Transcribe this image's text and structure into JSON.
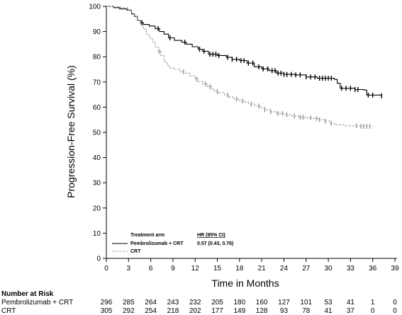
{
  "chart_data": {
    "type": "line",
    "title": "",
    "xlabel": "Time in Months",
    "ylabel": "Progression-Free Survival (%)",
    "xlim": [
      0,
      39
    ],
    "ylim": [
      0,
      100
    ],
    "x_ticks": [
      0,
      3,
      6,
      9,
      12,
      15,
      18,
      21,
      24,
      27,
      30,
      33,
      36,
      39
    ],
    "y_ticks": [
      0,
      10,
      20,
      30,
      40,
      50,
      60,
      70,
      80,
      90,
      100
    ],
    "grid": false,
    "legend": {
      "position": "bottom-left",
      "header_arm": "Treatment arm",
      "header_hr": "HR (95% CI)",
      "entries": [
        {
          "name": "Pembrolizumab + CRT",
          "hr": "0.57 (0.43, 0.76)",
          "color": "#000000",
          "dashed": false
        },
        {
          "name": "CRT",
          "hr": "",
          "color": "#9a9a9a",
          "dashed": true
        }
      ]
    },
    "series": [
      {
        "name": "Pembrolizumab + CRT",
        "color": "#000000",
        "dashed": false,
        "points": [
          [
            0,
            100
          ],
          [
            1,
            99.5
          ],
          [
            1.8,
            99
          ],
          [
            2.8,
            98.5
          ],
          [
            3.4,
            97
          ],
          [
            3.8,
            96
          ],
          [
            4.2,
            94.5
          ],
          [
            4.6,
            93.5
          ],
          [
            5,
            92.8
          ],
          [
            5.8,
            92.2
          ],
          [
            6.6,
            91.2
          ],
          [
            7.2,
            90
          ],
          [
            7.8,
            89
          ],
          [
            8.4,
            87.5
          ],
          [
            9.2,
            86.5
          ],
          [
            10.2,
            85.8
          ],
          [
            10.8,
            85
          ],
          [
            11.6,
            84
          ],
          [
            12.4,
            83
          ],
          [
            13,
            82.2
          ],
          [
            13.8,
            81
          ],
          [
            15,
            80.5
          ],
          [
            16.2,
            79.8
          ],
          [
            17,
            79
          ],
          [
            18,
            78.5
          ],
          [
            19,
            77.5
          ],
          [
            20,
            76
          ],
          [
            21,
            75.2
          ],
          [
            22,
            74.5
          ],
          [
            23,
            73.5
          ],
          [
            24,
            73
          ],
          [
            25.5,
            72.8
          ],
          [
            27,
            72
          ],
          [
            28.5,
            71.5
          ],
          [
            30.8,
            71
          ],
          [
            31.2,
            69.5
          ],
          [
            31.6,
            67.5
          ],
          [
            33.6,
            67
          ],
          [
            34.8,
            66.8
          ],
          [
            35.2,
            64.8
          ],
          [
            37.2,
            64.5
          ]
        ],
        "censor_x": [
          4.8,
          7,
          8.6,
          10.6,
          12.6,
          13.2,
          14,
          14.4,
          14.8,
          15.2,
          16.4,
          17,
          17.6,
          18.2,
          18.6,
          19.2,
          19.8,
          20.6,
          21.2,
          21.8,
          22.4,
          22.8,
          23.2,
          23.6,
          24,
          24.4,
          25,
          25.6,
          26.2,
          27,
          27.6,
          28.2,
          28.8,
          29.2,
          29.6,
          30,
          30.4,
          31.8,
          32.4,
          33,
          33.6,
          34,
          35.4,
          36,
          37.2
        ]
      },
      {
        "name": "CRT",
        "color": "#9a9a9a",
        "dashed": true,
        "points": [
          [
            0,
            100
          ],
          [
            1,
            99.8
          ],
          [
            2,
            99.5
          ],
          [
            3,
            98.5
          ],
          [
            3.4,
            96.8
          ],
          [
            3.8,
            96
          ],
          [
            4.2,
            94.5
          ],
          [
            4.6,
            92.5
          ],
          [
            5,
            91
          ],
          [
            5.4,
            89
          ],
          [
            5.8,
            87.5
          ],
          [
            6.2,
            86
          ],
          [
            6.6,
            84
          ],
          [
            7,
            82
          ],
          [
            7.4,
            80.5
          ],
          [
            7.8,
            78
          ],
          [
            8.2,
            76.5
          ],
          [
            8.6,
            75.5
          ],
          [
            9.2,
            75
          ],
          [
            10,
            74
          ],
          [
            10.6,
            73.5
          ],
          [
            11.2,
            72.5
          ],
          [
            12,
            71.2
          ],
          [
            12.4,
            70.2
          ],
          [
            13,
            69.2
          ],
          [
            13.6,
            68.2
          ],
          [
            14.2,
            67.2
          ],
          [
            14.6,
            66.2
          ],
          [
            15.2,
            65.8
          ],
          [
            16,
            64.8
          ],
          [
            16.6,
            64
          ],
          [
            17.2,
            63.2
          ],
          [
            18,
            62.5
          ],
          [
            18.6,
            62
          ],
          [
            19.2,
            61.2
          ],
          [
            20,
            60.5
          ],
          [
            20.8,
            59.8
          ],
          [
            21.4,
            59
          ],
          [
            22.2,
            58.2
          ],
          [
            23,
            57.5
          ],
          [
            24,
            57
          ],
          [
            25,
            56.5
          ],
          [
            26,
            56
          ],
          [
            27,
            55.8
          ],
          [
            28,
            55.5
          ],
          [
            28.6,
            55
          ],
          [
            29.4,
            54.5
          ],
          [
            30.2,
            53.6
          ],
          [
            31,
            53
          ],
          [
            32.2,
            52.6
          ],
          [
            34.4,
            52.4
          ],
          [
            36,
            52.3
          ]
        ],
        "censor_x": [
          7.2,
          10.4,
          12.2,
          13.4,
          14,
          15,
          16.4,
          17.6,
          18.4,
          19.6,
          20.6,
          21.4,
          22.2,
          23.2,
          23.8,
          24.4,
          25.4,
          26.2,
          26.6,
          27.6,
          28.4,
          28.8,
          29.6,
          30.4,
          33.8,
          34.4,
          34.8,
          35.2,
          35.6
        ]
      }
    ],
    "number_at_risk": {
      "title": "Number at Risk",
      "rows": [
        {
          "label": "Pembrolizumab + CRT",
          "values": [
            "296",
            "285",
            "264",
            "243",
            "232",
            "205",
            "180",
            "160",
            "127",
            "101",
            "53",
            "41",
            "1",
            "0"
          ]
        },
        {
          "label": "CRT",
          "values": [
            "305",
            "292",
            "254",
            "218",
            "202",
            "177",
            "149",
            "128",
            "93",
            "78",
            "41",
            "37",
            "0",
            "0"
          ]
        }
      ]
    }
  }
}
